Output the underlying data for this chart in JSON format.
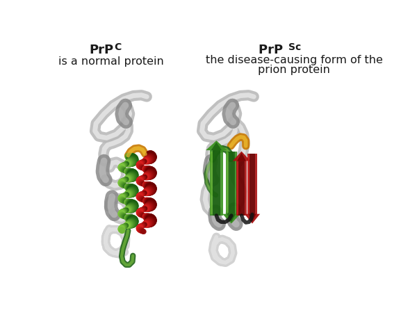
{
  "title_left_text": "PrP",
  "title_left_super": "C",
  "subtitle_left": "is a normal protein",
  "title_right_text": "PrP ",
  "title_right_super": "Sc",
  "subtitle_right_line1": "the disease-causing form of the",
  "subtitle_right_line2": "prion protein",
  "bg_color": "#ffffff",
  "text_color": "#1a1a1a",
  "title_fontsize": 13,
  "subtitle_fontsize": 11.5,
  "green_dark": "#1a6010",
  "green_mid": "#3a9020",
  "green_light": "#80c840",
  "red_dark": "#6b0000",
  "red_mid": "#aa1010",
  "red_light": "#dd2020",
  "orange_dark": "#c87800",
  "orange_light": "#f0c030",
  "gray_dark": "#444444",
  "gray_light": "#cccccc",
  "white_ribbon": "#e8e8e8",
  "white_highlight": "#ffffff"
}
